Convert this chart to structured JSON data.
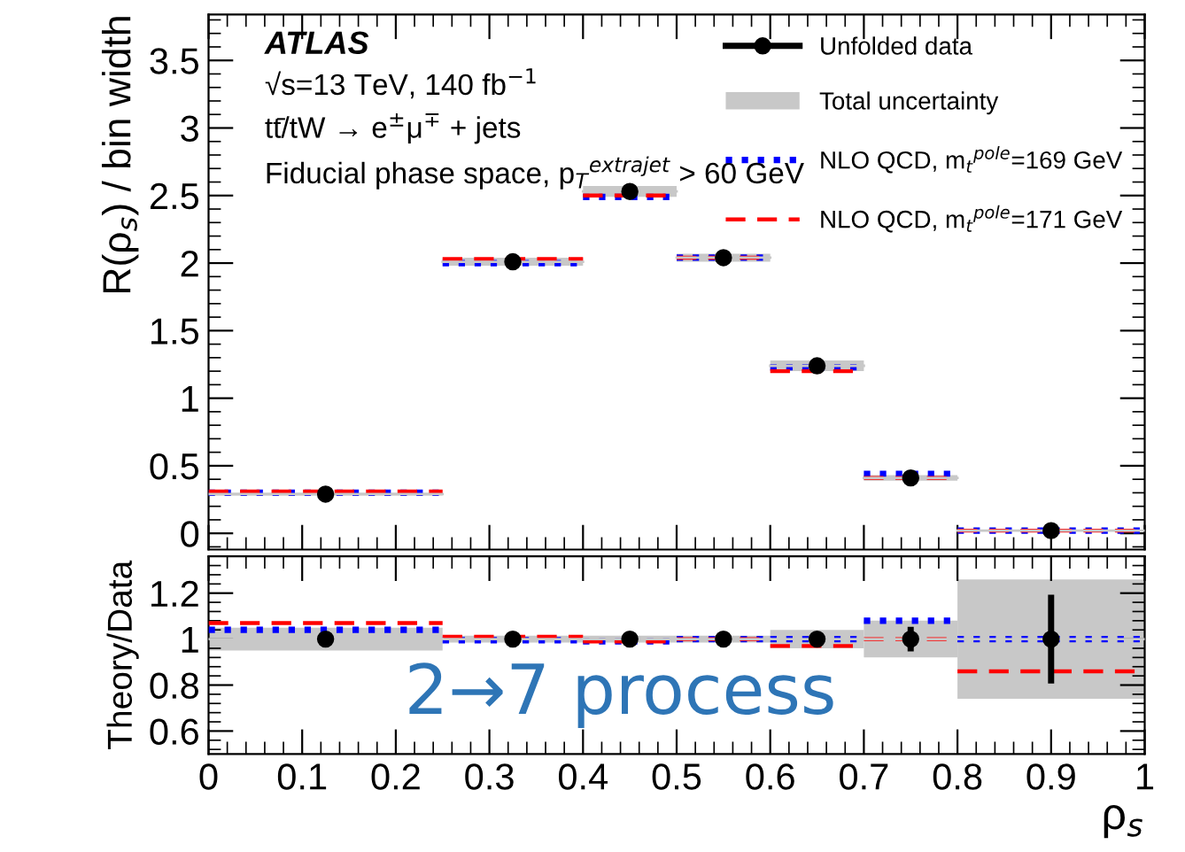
{
  "chart_data": [
    {
      "type": "step",
      "ylabel": "R(ρ$_{s}$) / bin width",
      "xlim": [
        0,
        1
      ],
      "ylim": [
        -0.12,
        3.84
      ],
      "xticks": [
        0,
        0.1,
        0.2,
        0.3,
        0.4,
        0.5,
        0.6,
        0.7,
        0.8,
        0.9,
        1
      ],
      "yticks": [
        0,
        0.5,
        1,
        1.5,
        2,
        2.5,
        3,
        3.5
      ],
      "tick_labels": "y",
      "grid": false,
      "legend": "top right",
      "annotations": [
        "ATLAS",
        "√s=13 TeV, 140 fb$^{−1}$",
        "tt̄/tW → e$^{±}$μ$^{∓}$ + jets",
        "Fiducial phase space, p$_{T}$$^{extrajet}$ > 60 GeV"
      ],
      "series": [
        {
          "name": "Unfolded data",
          "type": "scatter",
          "color": "#000000",
          "marker": "circle",
          "x": [
            0.125,
            0.325,
            0.45,
            0.55,
            0.65,
            0.75,
            0.9
          ],
          "values": [
            0.29,
            2.01,
            2.53,
            2.04,
            1.24,
            0.41,
            0.02
          ]
        },
        {
          "name": "Total uncertainty",
          "color": "#c8c8c8",
          "x": [
            0,
            0.25,
            0.4,
            0.5,
            0.6,
            0.7,
            0.8,
            1
          ],
          "values": [
            0.29,
            2.01,
            2.53,
            2.04,
            1.24,
            0.41,
            0.02,
            0.02
          ],
          "lower": [
            0.28,
            1.98,
            2.49,
            2.01,
            1.2,
            0.39,
            0.015,
            0.015
          ],
          "upper": [
            0.3,
            2.04,
            2.57,
            2.07,
            1.28,
            0.43,
            0.025,
            0.025
          ]
        },
        {
          "name": "NLO QCD, m$_{t}$$^{pole}$=169 GeV",
          "color": "#0000ff",
          "line_style": "dotted",
          "x": [
            0,
            0.25,
            0.4,
            0.5,
            0.6,
            0.7,
            0.8,
            1
          ],
          "values": [
            0.3,
            2.0,
            2.49,
            2.04,
            1.23,
            0.44,
            0.02,
            0.02
          ]
        },
        {
          "name": "NLO QCD, m$_{t}$$^{pole}$=171 GeV",
          "color": "#ff0000",
          "line_style": "dashed",
          "x": [
            0,
            0.25,
            0.4,
            0.5,
            0.6,
            0.7,
            0.8,
            1
          ],
          "values": [
            0.31,
            2.03,
            2.5,
            2.04,
            1.2,
            0.41,
            0.02,
            0.02
          ]
        }
      ]
    },
    {
      "type": "step",
      "xlabel": "ρ$_{s}$",
      "ylabel": "Theory/Data",
      "xlim": [
        0,
        1
      ],
      "ylim": [
        0.5,
        1.36
      ],
      "xticks": [
        0,
        0.1,
        0.2,
        0.3,
        0.4,
        0.5,
        0.6,
        0.7,
        0.8,
        0.9,
        1
      ],
      "yticks": [
        0.6,
        0.8,
        1,
        1.2
      ],
      "grid": false,
      "annotations": [
        "2→7 process"
      ],
      "series": [
        {
          "color": "#c8c8c8",
          "x": [
            0,
            0.25,
            0.4,
            0.5,
            0.6,
            0.7,
            0.8,
            1
          ],
          "values": [
            1,
            1,
            1,
            1,
            1,
            1,
            1,
            1
          ],
          "lower": [
            0.95,
            0.985,
            0.985,
            0.985,
            0.96,
            0.92,
            0.74,
            0.74
          ],
          "upper": [
            1.05,
            1.015,
            1.015,
            1.015,
            1.04,
            1.08,
            1.26,
            1.26
          ]
        },
        {
          "color": "#0000ff",
          "line_style": "dotted",
          "x": [
            0,
            0.25,
            0.4,
            0.5,
            0.6,
            0.7,
            0.8,
            1
          ],
          "values": [
            1.04,
            0.995,
            0.99,
            1.0,
            1.0,
            1.08,
            1.0,
            1.0
          ]
        },
        {
          "color": "#ff0000",
          "line_style": "dashed",
          "x": [
            0,
            0.25,
            0.4,
            0.5,
            0.6,
            0.7,
            0.8,
            1
          ],
          "values": [
            1.07,
            1.01,
            0.99,
            1.0,
            0.97,
            1.0,
            0.86,
            0.86
          ]
        },
        {
          "type": "scatter",
          "color": "#000000",
          "marker": "circle",
          "x": [
            0.125,
            0.325,
            0.45,
            0.55,
            0.65,
            0.75,
            0.9
          ],
          "values": [
            1,
            1,
            1,
            1,
            1,
            1,
            1
          ],
          "errors": [
            null,
            null,
            null,
            null,
            null,
            0.04,
            0.18
          ]
        }
      ]
    }
  ]
}
